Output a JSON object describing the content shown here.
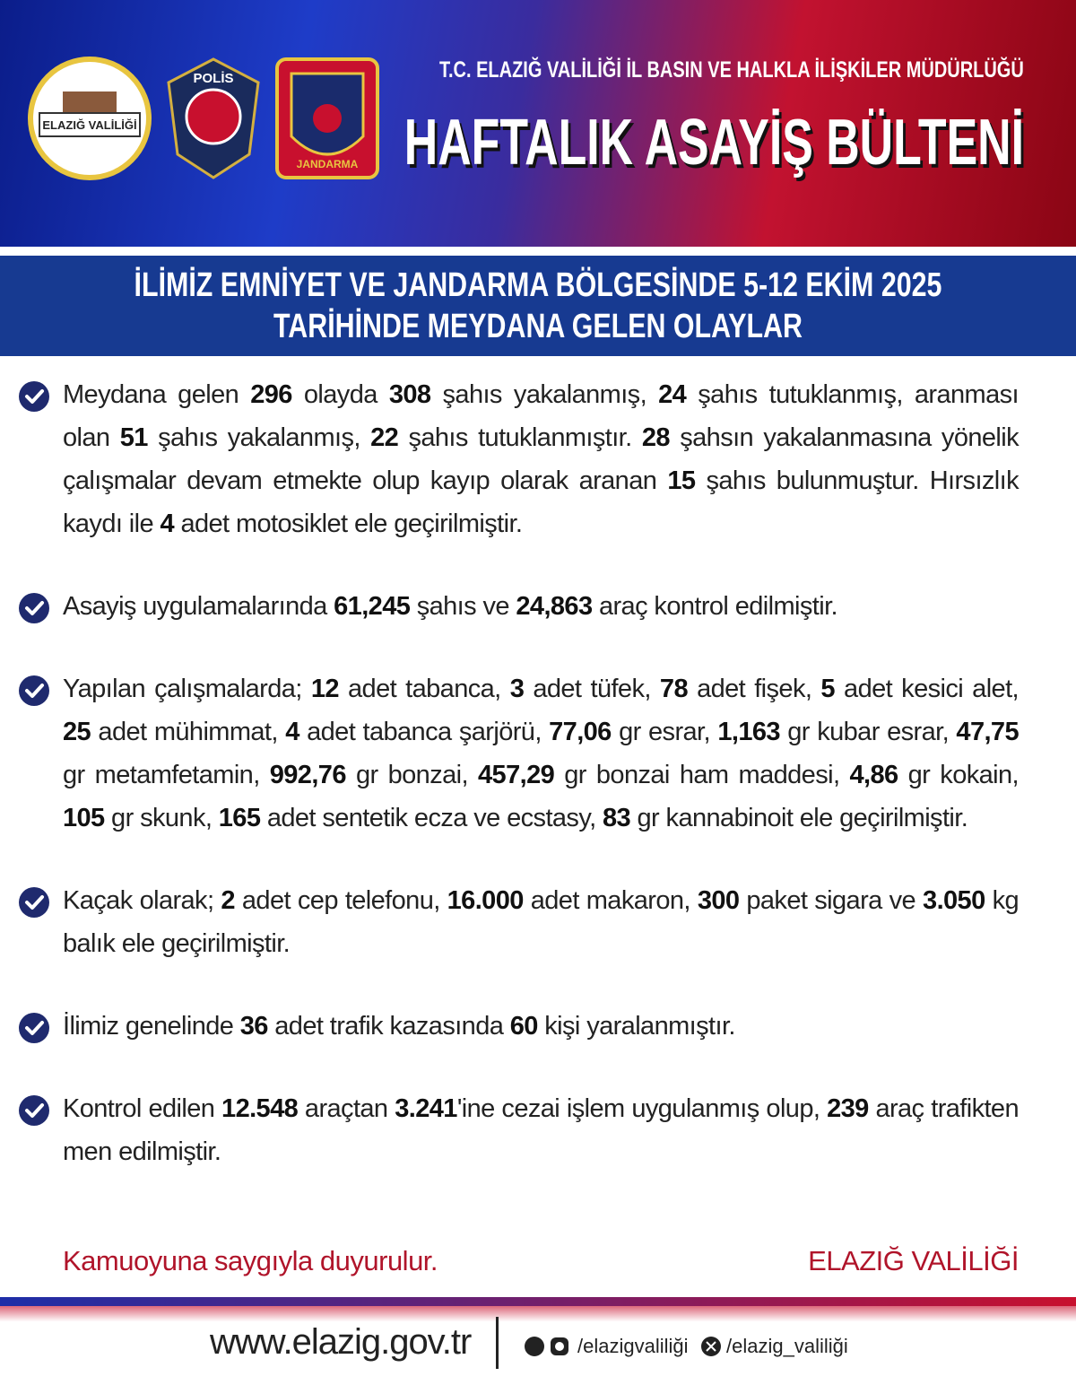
{
  "header": {
    "subtitle": "T.C. ELAZIĞ VALİLİĞİ İL BASIN VE HALKLA İLİŞKİLER MÜDÜRLÜĞÜ",
    "title": "HAFTALIK ASAYİŞ BÜLTENİ",
    "logos": [
      "ELAZIĞ VALİLİĞİ",
      "POLİS",
      "JANDARMA"
    ]
  },
  "banner": [
    "İLİMİZ EMNİYET VE JANDARMA BÖLGESİNDE 5-12 EKİM 2025",
    "TARİHİNDE MEYDANA GELEN OLAYLAR"
  ],
  "items": [
    [
      "Meydana gelen ",
      "296",
      " olayda ",
      "308",
      " şahıs yakalanmış, ",
      "24",
      " şahıs tutuklanmış, aranması olan ",
      "51",
      " şahıs yakalanmış, ",
      "22",
      " şahıs tutuklanmıştır. ",
      "28",
      " şahsın yakalanmasına yönelik çalışmalar devam etmekte olup kayıp olarak aranan ",
      "15",
      " şahıs bulunmuştur. Hırsızlık kaydı ile ",
      "4",
      " adet motosiklet ele geçirilmiştir."
    ],
    [
      "Asayiş uygulamalarında ",
      "61,245",
      " şahıs ve ",
      "24,863",
      " araç kontrol edilmiştir."
    ],
    [
      "Yapılan çalışmalarda; ",
      "12",
      " adet tabanca, ",
      "3",
      " adet tüfek, ",
      "78",
      " adet fişek, ",
      "5",
      " adet kesici alet, ",
      "25",
      " adet mühimmat, ",
      "4",
      " adet tabanca şarjörü, ",
      "77,06",
      " gr esrar, ",
      "1,163",
      " gr kubar esrar, ",
      "47,75",
      " gr metamfetamin, ",
      "992,76",
      " gr bonzai, ",
      "457,29",
      " gr bonzai ham maddesi, ",
      "4,86",
      " gr kokain, ",
      "105",
      " gr skunk, ",
      "165",
      " adet sentetik ecza ve ecstasy, ",
      "83",
      " gr kannabinoit ele geçirilmiştir."
    ],
    [
      "Kaçak olarak; ",
      "2",
      " adet cep telefonu, ",
      "16.000",
      " adet makaron, ",
      "300",
      " paket sigara ve ",
      "3.050",
      " kg balık ele geçirilmiştir."
    ],
    [
      "İlimiz genelinde ",
      "36",
      " adet trafik kazasında ",
      "60",
      " kişi yaralanmıştır."
    ],
    [
      "Kontrol edilen ",
      "12.548",
      " araçtan ",
      "3.241",
      "'ine cezai işlem uygulanmış olup, ",
      "239",
      " araç trafikten men edilmiştir."
    ]
  ],
  "closing": {
    "left": "Kamuoyuna saygıyla duyurulur.",
    "right": "ELAZIĞ VALİLİĞİ"
  },
  "footer": {
    "website": "www.elazig.gov.tr",
    "social": [
      "/elazigvaliliği",
      "/elazig_valiliği"
    ]
  }
}
